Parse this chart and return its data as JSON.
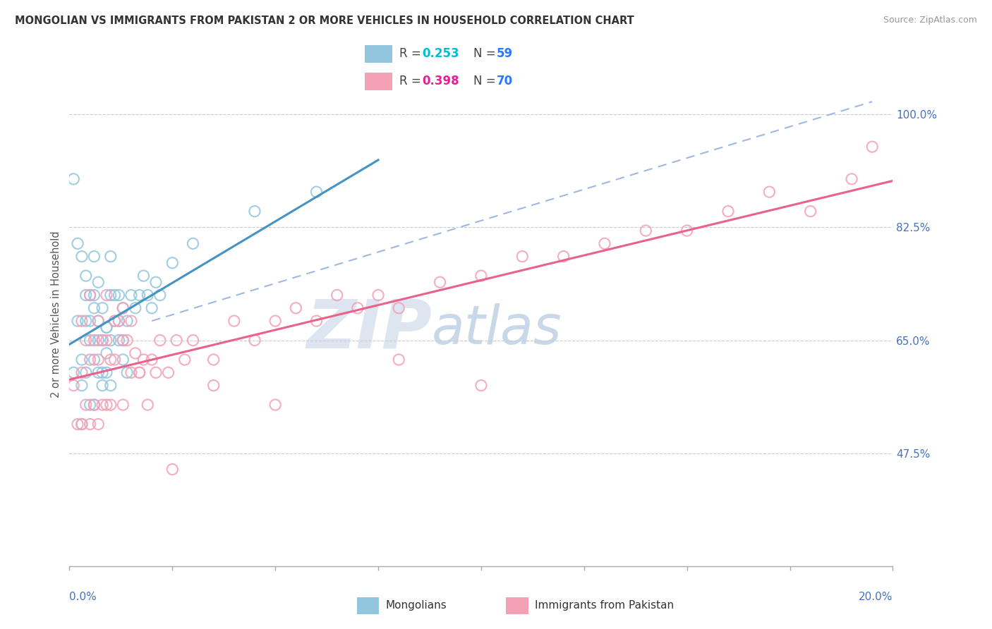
{
  "title": "MONGOLIAN VS IMMIGRANTS FROM PAKISTAN 2 OR MORE VEHICLES IN HOUSEHOLD CORRELATION CHART",
  "source": "Source: ZipAtlas.com",
  "ylabel": "2 or more Vehicles in Household",
  "ytick_labels": [
    "47.5%",
    "65.0%",
    "82.5%",
    "100.0%"
  ],
  "ytick_values": [
    0.475,
    0.65,
    0.825,
    1.0
  ],
  "xmin": 0.0,
  "xmax": 0.2,
  "ymin": 0.3,
  "ymax": 1.08,
  "legend_blue_r": "0.253",
  "legend_blue_n": "59",
  "legend_pink_r": "0.398",
  "legend_pink_n": "70",
  "color_blue": "#92c5de",
  "color_pink": "#f4a0b5",
  "color_blue_line": "#4393c3",
  "color_pink_line": "#e8628a",
  "color_dash": "#a0b8e0",
  "color_ytick": "#4472c4",
  "color_r_blue": "#00bcd4",
  "color_r_pink": "#e91e9a",
  "color_n": "#2979ff",
  "blue_x": [
    0.001,
    0.001,
    0.002,
    0.003,
    0.003,
    0.004,
    0.004,
    0.005,
    0.005,
    0.006,
    0.006,
    0.006,
    0.007,
    0.007,
    0.008,
    0.008,
    0.009,
    0.009,
    0.01,
    0.01,
    0.01,
    0.011,
    0.012,
    0.012,
    0.013,
    0.013,
    0.014,
    0.015,
    0.016,
    0.017,
    0.018,
    0.019,
    0.02,
    0.021,
    0.022,
    0.003,
    0.004,
    0.005,
    0.006,
    0.007,
    0.008,
    0.009,
    0.01,
    0.011,
    0.012,
    0.013,
    0.014,
    0.002,
    0.003,
    0.004,
    0.005,
    0.006,
    0.007,
    0.008,
    0.009,
    0.025,
    0.03,
    0.045,
    0.06
  ],
  "blue_y": [
    0.6,
    0.9,
    0.8,
    0.58,
    0.52,
    0.68,
    0.6,
    0.65,
    0.55,
    0.7,
    0.62,
    0.55,
    0.68,
    0.6,
    0.65,
    0.58,
    0.67,
    0.6,
    0.72,
    0.65,
    0.58,
    0.68,
    0.72,
    0.65,
    0.7,
    0.62,
    0.68,
    0.72,
    0.7,
    0.72,
    0.75,
    0.72,
    0.7,
    0.74,
    0.72,
    0.78,
    0.72,
    0.68,
    0.72,
    0.65,
    0.6,
    0.63,
    0.78,
    0.72,
    0.68,
    0.65,
    0.6,
    0.68,
    0.62,
    0.75,
    0.72,
    0.78,
    0.74,
    0.7,
    0.67,
    0.77,
    0.8,
    0.85,
    0.88
  ],
  "pink_x": [
    0.001,
    0.002,
    0.003,
    0.003,
    0.004,
    0.004,
    0.005,
    0.005,
    0.006,
    0.006,
    0.007,
    0.007,
    0.008,
    0.008,
    0.009,
    0.009,
    0.01,
    0.01,
    0.011,
    0.012,
    0.013,
    0.013,
    0.014,
    0.015,
    0.016,
    0.017,
    0.018,
    0.019,
    0.02,
    0.021,
    0.022,
    0.024,
    0.026,
    0.028,
    0.03,
    0.035,
    0.04,
    0.045,
    0.05,
    0.055,
    0.06,
    0.065,
    0.07,
    0.075,
    0.08,
    0.09,
    0.1,
    0.11,
    0.12,
    0.13,
    0.14,
    0.15,
    0.16,
    0.17,
    0.18,
    0.19,
    0.195,
    0.003,
    0.005,
    0.007,
    0.009,
    0.011,
    0.013,
    0.015,
    0.017,
    0.025,
    0.035,
    0.05,
    0.08,
    0.1
  ],
  "pink_y": [
    0.58,
    0.52,
    0.6,
    0.52,
    0.65,
    0.55,
    0.62,
    0.52,
    0.65,
    0.55,
    0.62,
    0.52,
    0.65,
    0.55,
    0.65,
    0.55,
    0.62,
    0.55,
    0.62,
    0.68,
    0.65,
    0.55,
    0.65,
    0.6,
    0.63,
    0.6,
    0.62,
    0.55,
    0.62,
    0.6,
    0.65,
    0.6,
    0.65,
    0.62,
    0.65,
    0.62,
    0.68,
    0.65,
    0.68,
    0.7,
    0.68,
    0.72,
    0.7,
    0.72,
    0.7,
    0.74,
    0.75,
    0.78,
    0.78,
    0.8,
    0.82,
    0.82,
    0.85,
    0.88,
    0.85,
    0.9,
    0.95,
    0.68,
    0.72,
    0.68,
    0.72,
    0.68,
    0.7,
    0.68,
    0.6,
    0.45,
    0.58,
    0.55,
    0.62,
    0.58
  ]
}
